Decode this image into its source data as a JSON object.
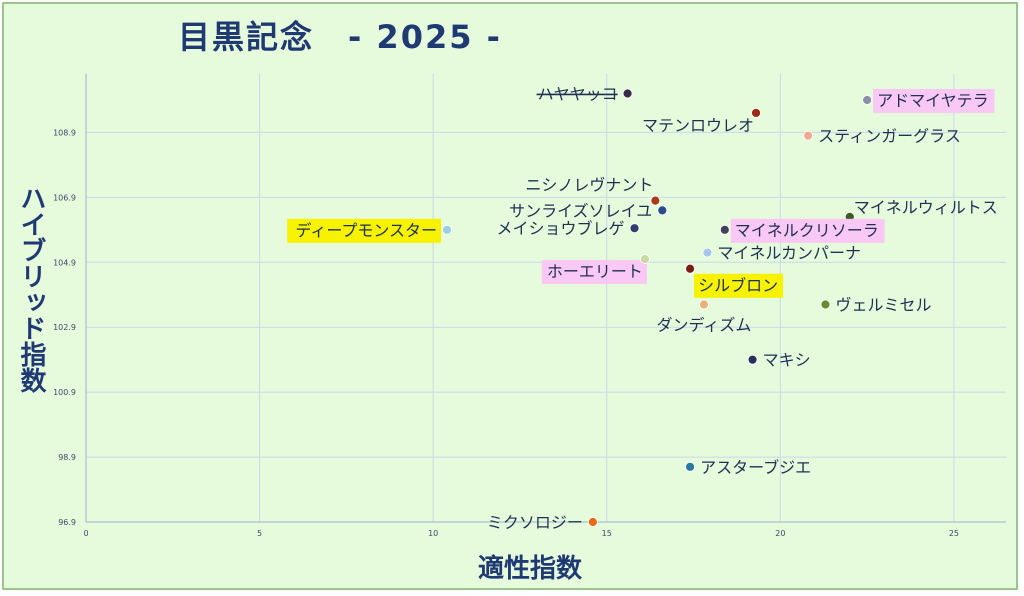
{
  "chart_data": {
    "type": "scatter",
    "title": "目黒記念　- 2025 -",
    "xlabel": "適性指数",
    "ylabel": "ハイブリッド指数",
    "xlim": [
      0,
      26.5
    ],
    "ylim": [
      96.9,
      110.7
    ],
    "x_ticks": [
      0,
      5,
      10,
      15,
      20,
      25
    ],
    "y_ticks": [
      96.9,
      98.9,
      100.9,
      102.9,
      104.9,
      106.9,
      108.9
    ],
    "grid": true,
    "points": [
      {
        "name": "ハヤヤッコ",
        "x": 15.6,
        "y": 110.1,
        "color": "#3a2a4a",
        "label_side": "left",
        "strike": true
      },
      {
        "name": "アドマイヤテラ",
        "x": 22.5,
        "y": 109.9,
        "color": "#8c8fa6",
        "label_side": "right",
        "highlight": "#f9c8f5"
      },
      {
        "name": "マテンロウレオ",
        "x": 19.3,
        "y": 109.5,
        "color": "#9c2a14",
        "label_side": "below-left"
      },
      {
        "name": "スティンガーグラス",
        "x": 20.8,
        "y": 108.8,
        "color": "#f0a894",
        "label_side": "right"
      },
      {
        "name": "ニシノレヴナント",
        "x": 16.4,
        "y": 106.8,
        "color": "#a83a1e",
        "label_side": "above-left"
      },
      {
        "name": "サンライズソレイユ",
        "x": 16.6,
        "y": 106.5,
        "color": "#2a4c8c",
        "label_side": "left"
      },
      {
        "name": "マイネルウィルトス",
        "x": 22.0,
        "y": 106.3,
        "color": "#3e5a24",
        "label_side": "above-right"
      },
      {
        "name": "ディープモンスター",
        "x": 10.4,
        "y": 105.9,
        "color": "#9ad0e0",
        "label_side": "left",
        "highlight": "#f7f200"
      },
      {
        "name": "メイショウブレゲ",
        "x": 15.8,
        "y": 105.95,
        "color": "#2e3f6a",
        "label_side": "left"
      },
      {
        "name": "マイネルクリソーラ",
        "x": 18.4,
        "y": 105.9,
        "color": "#45405e",
        "label_side": "right",
        "highlight": "#f9c8f5"
      },
      {
        "name": "マイネルカンパーナ",
        "x": 17.9,
        "y": 105.2,
        "color": "#a7c7e8",
        "label_side": "right"
      },
      {
        "name": "ホーエリート",
        "x": 16.1,
        "y": 105.0,
        "color": "#c9d9a4",
        "label_side": "below-left",
        "highlight": "#f9c8f5"
      },
      {
        "name": "シルブロン",
        "x": 17.4,
        "y": 104.7,
        "color": "#7a1e14",
        "label_side": "below-right",
        "highlight": "#f7f200"
      },
      {
        "name": "ダンディズム",
        "x": 17.8,
        "y": 103.6,
        "color": "#e8b07a",
        "label_side": "below"
      },
      {
        "name": "ヴェルミセル",
        "x": 21.3,
        "y": 103.6,
        "color": "#6a8a30",
        "label_side": "right"
      },
      {
        "name": "マキシ",
        "x": 19.2,
        "y": 101.9,
        "color": "#26305a",
        "label_side": "right"
      },
      {
        "name": "アスターブジエ",
        "x": 17.4,
        "y": 98.6,
        "color": "#2a7aa0",
        "label_side": "right"
      },
      {
        "name": "ミクソロジー",
        "x": 14.6,
        "y": 96.9,
        "color": "#e86a14",
        "label_side": "left"
      }
    ]
  }
}
